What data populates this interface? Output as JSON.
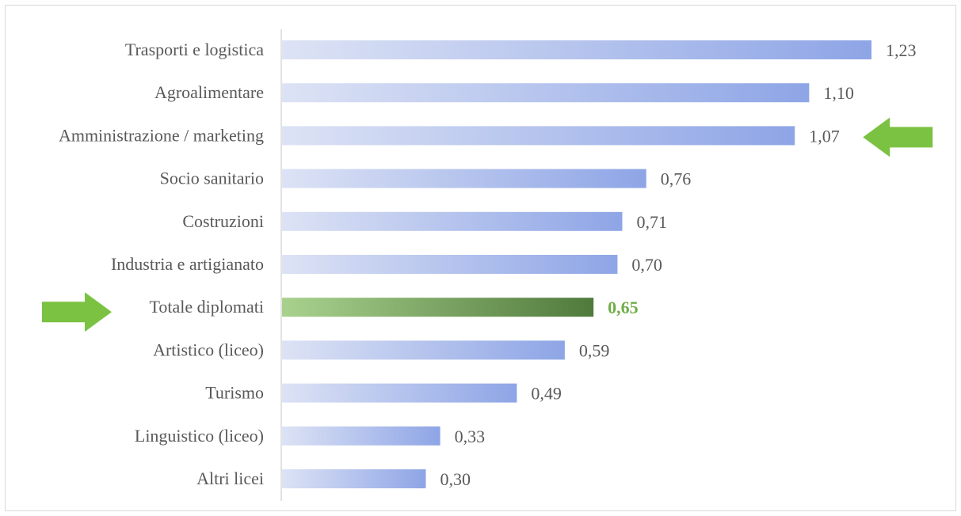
{
  "colors": {
    "bar_start": "#dde3f5",
    "bar_end": "#8ea5e6",
    "highlight_start": "#a9d18e",
    "highlight_end": "#507a3c",
    "highlight_text": "#70ad47",
    "arrow": "#7cc242",
    "text": "#595959",
    "axis": "#d9d9d9"
  },
  "chart_data": {
    "type": "bar",
    "orientation": "horizontal",
    "categories": [
      "Trasporti e logistica",
      "Agroalimentare",
      "Amministrazione / marketing",
      "Socio sanitario",
      "Costruzioni",
      "Industria e artigianato",
      "Totale diplomati",
      "Artistico (liceo)",
      "Turismo",
      "Linguistico (liceo)",
      "Altri licei"
    ],
    "values": [
      1.23,
      1.1,
      1.07,
      0.76,
      0.71,
      0.7,
      0.65,
      0.59,
      0.49,
      0.33,
      0.3
    ],
    "value_labels": [
      "1,23",
      "1,10",
      "1,07",
      "0,76",
      "0,71",
      "0,70",
      "0,65",
      "0,59",
      "0,49",
      "0,33",
      "0,30"
    ],
    "highlighted_category": "Totale diplomati",
    "arrow_markers": [
      {
        "category": "Amministrazione / marketing",
        "side": "right",
        "icon": "arrow-left-icon"
      },
      {
        "category": "Totale diplomati",
        "side": "left",
        "icon": "arrow-right-icon"
      }
    ],
    "title": "",
    "xlabel": "",
    "ylabel": "",
    "xlim": [
      0,
      1.23
    ],
    "grid": false,
    "legend": "none"
  }
}
